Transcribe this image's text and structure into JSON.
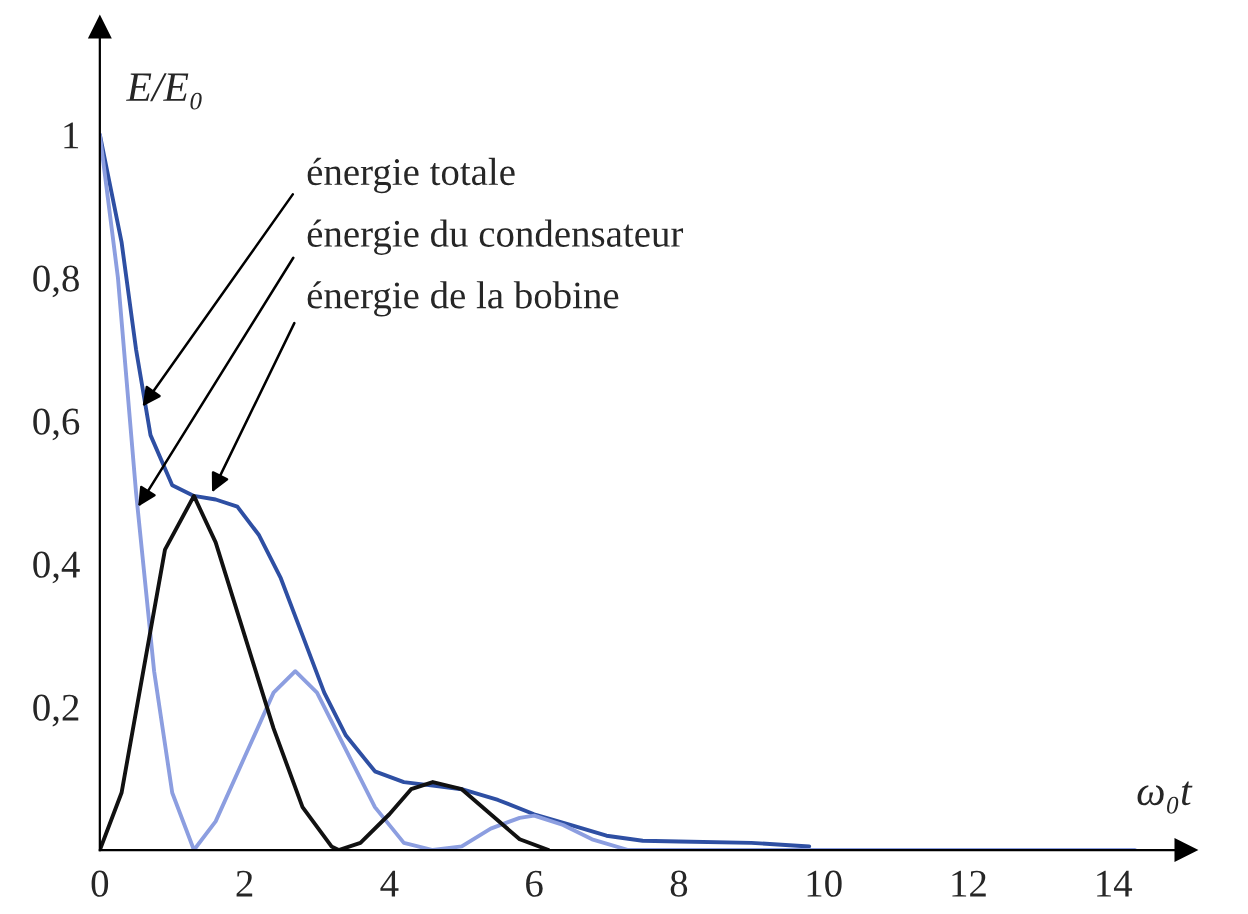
{
  "chart_data": {
    "type": "line",
    "xlabel": "ω₀t",
    "ylabel": "E/E₀",
    "xlim": [
      0,
      15
    ],
    "ylim": [
      0,
      1.15
    ],
    "xticks": [
      {
        "value": 0,
        "label": "0"
      },
      2,
      4,
      6,
      8,
      10,
      12,
      14
    ],
    "yticks": [
      {
        "value": 0.2,
        "label": "0,2"
      },
      {
        "value": 0.4,
        "label": "0,4"
      },
      {
        "value": 0.6,
        "label": "0,6"
      },
      {
        "value": 0.8,
        "label": "0,8"
      },
      {
        "value": 1,
        "label": "1"
      }
    ],
    "grid": false,
    "legend": false,
    "marker": "none",
    "line_style": "solid",
    "series": [
      {
        "color": "#2e4fa3",
        "x": [
          0,
          0.3,
          0.5,
          0.7,
          1.0,
          1.3,
          1.6,
          1.9,
          2.2,
          2.5,
          2.8,
          3.1,
          3.4,
          3.8,
          4.2,
          4.6,
          5.0,
          5.5,
          6.0,
          6.5,
          7.0,
          7.5,
          8,
          9,
          9.8
        ],
        "values": [
          1,
          0.85,
          0.7,
          0.58,
          0.51,
          0.495,
          0.49,
          0.48,
          0.44,
          0.38,
          0.3,
          0.22,
          0.16,
          0.11,
          0.095,
          0.09,
          0.085,
          0.07,
          0.05,
          0.035,
          0.02,
          0.013,
          0.012,
          0.01,
          0.005
        ]
      },
      {
        "color": "#8c9ee0",
        "x": [
          0,
          0.25,
          0.5,
          0.75,
          1.0,
          1.3,
          1.6,
          2.0,
          2.4,
          2.7,
          3.0,
          3.4,
          3.8,
          4.2,
          4.6,
          5.0,
          5.4,
          5.8,
          6.0,
          6.4,
          6.8,
          7.3,
          14.3
        ],
        "values": [
          1,
          0.8,
          0.5,
          0.25,
          0.08,
          0,
          0.04,
          0.13,
          0.22,
          0.25,
          0.22,
          0.14,
          0.06,
          0.01,
          0,
          0.005,
          0.03,
          0.045,
          0.048,
          0.035,
          0.015,
          0,
          0
        ]
      },
      {
        "color": "#111111",
        "x": [
          0,
          0.3,
          0.6,
          0.9,
          1.3,
          1.6,
          2.0,
          2.4,
          2.8,
          3.2,
          3.3,
          3.6,
          4.0,
          4.3,
          4.6,
          5.0,
          5.4,
          5.8,
          6.2
        ],
        "values": [
          0,
          0.08,
          0.25,
          0.42,
          0.495,
          0.43,
          0.3,
          0.17,
          0.06,
          0.005,
          0,
          0.01,
          0.05,
          0.085,
          0.095,
          0.085,
          0.05,
          0.015,
          0
        ]
      }
    ],
    "annotations": [
      {
        "text": "énergie totale",
        "x": 0.59,
        "y": 0.62
      },
      {
        "text": "énergie du condensateur",
        "x": 0.53,
        "y": 0.48
      },
      {
        "text": "énergie de la bobine",
        "x": 1.55,
        "y": 0.5
      }
    ]
  }
}
